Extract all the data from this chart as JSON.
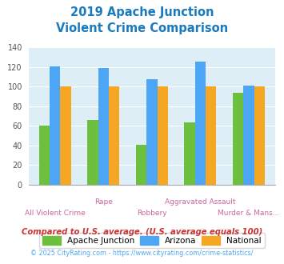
{
  "title_line1": "2019 Apache Junction",
  "title_line2": "Violent Crime Comparison",
  "title_color": "#1a7abf",
  "xticklabels_top": [
    "",
    "Rape",
    "",
    "Aggravated Assault",
    ""
  ],
  "xticklabels_bot": [
    "All Violent Crime",
    "",
    "Robbery",
    "",
    "Murder & Mans..."
  ],
  "apache_junction": [
    60,
    66,
    41,
    64,
    94
  ],
  "arizona": [
    121,
    119,
    108,
    126,
    101
  ],
  "national": [
    100,
    100,
    100,
    100,
    100
  ],
  "colors": {
    "apache_junction": "#6dbf3e",
    "arizona": "#4da6f5",
    "national": "#f5a623"
  },
  "ylim": [
    0,
    140
  ],
  "yticks": [
    0,
    20,
    40,
    60,
    80,
    100,
    120,
    140
  ],
  "plot_bg": "#ddeef7",
  "fig_bg": "#ffffff",
  "legend_labels": [
    "Apache Junction",
    "Arizona",
    "National"
  ],
  "footnote1": "Compared to U.S. average. (U.S. average equals 100)",
  "footnote2": "© 2025 CityRating.com - https://www.cityrating.com/crime-statistics/",
  "footnote1_color": "#cc3333",
  "footnote2_color": "#4da6f5",
  "tick_label_color": "#cc6699",
  "bar_width": 0.22
}
